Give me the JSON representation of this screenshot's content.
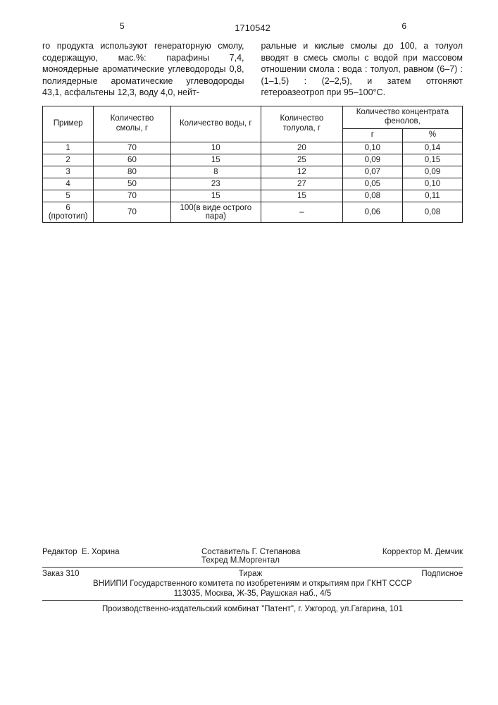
{
  "page_left_num": "5",
  "page_right_num": "6",
  "document_number": "1710542",
  "left_column_text": "го продукта используют генераторную смолу, содержащую, мас.%: парафины 7,4, моноядерные ароматические углеводороды 0,8, полиядерные ароматические углеводороды 43,1, асфальтены 12,3, воду 4,0, нейт-",
  "right_column_text": "ральные и кислые смолы до 100, а толуол вводят в смесь смолы с водой при массовом отношении смола : вода : толуол, равном (6–7) : (1–1,5) : (2–2,5), и затем отгоняют гетероазеотроп при 95–100°С.",
  "table": {
    "headers": {
      "col1": "Пример",
      "col2": "Количество смолы, г",
      "col3": "Количество воды, г",
      "col4": "Количество толуола, г",
      "col5": "Количество концентрата фенолов,",
      "col5a": "г",
      "col5b": "%"
    },
    "rows": [
      {
        "c1": "1",
        "c2": "70",
        "c3": "10",
        "c4": "20",
        "c5a": "0,10",
        "c5b": "0,14"
      },
      {
        "c1": "2",
        "c2": "60",
        "c3": "15",
        "c4": "25",
        "c5a": "0,09",
        "c5b": "0,15"
      },
      {
        "c1": "3",
        "c2": "80",
        "c3": "8",
        "c4": "12",
        "c5a": "0,07",
        "c5b": "0,09"
      },
      {
        "c1": "4",
        "c2": "50",
        "c3": "23",
        "c4": "27",
        "c5a": "0,05",
        "c5b": "0,10"
      },
      {
        "c1": "5",
        "c2": "70",
        "c3": "15",
        "c4": "15",
        "c5a": "0,08",
        "c5b": "0,11"
      },
      {
        "c1": "6 (прототип)",
        "c2": "70",
        "c3": "100(в виде острого пара)",
        "c4": "–",
        "c5a": "0,06",
        "c5b": "0,08"
      }
    ]
  },
  "footer": {
    "editor_label": "Редактор",
    "editor_name": "Е. Хорина",
    "compiler_label": "Составитель",
    "compiler_name": "Г. Степанова",
    "techred_label": "Техред",
    "techred_name": "М.Моргентал",
    "corrector_label": "Корректор",
    "corrector_name": "М. Демчик",
    "order": "Заказ 310",
    "tirazh": "Тираж",
    "podpisnoe": "Подписное",
    "org": "ВНИИПИ Государственного комитета по изобретениям и открытиям при ГКНТ СССР",
    "address": "113035, Москва, Ж-35, Раушская наб., 4/5",
    "plant": "Производственно-издательский комбинат \"Патент\", г. Ужгород, ул.Гагарина, 101"
  }
}
